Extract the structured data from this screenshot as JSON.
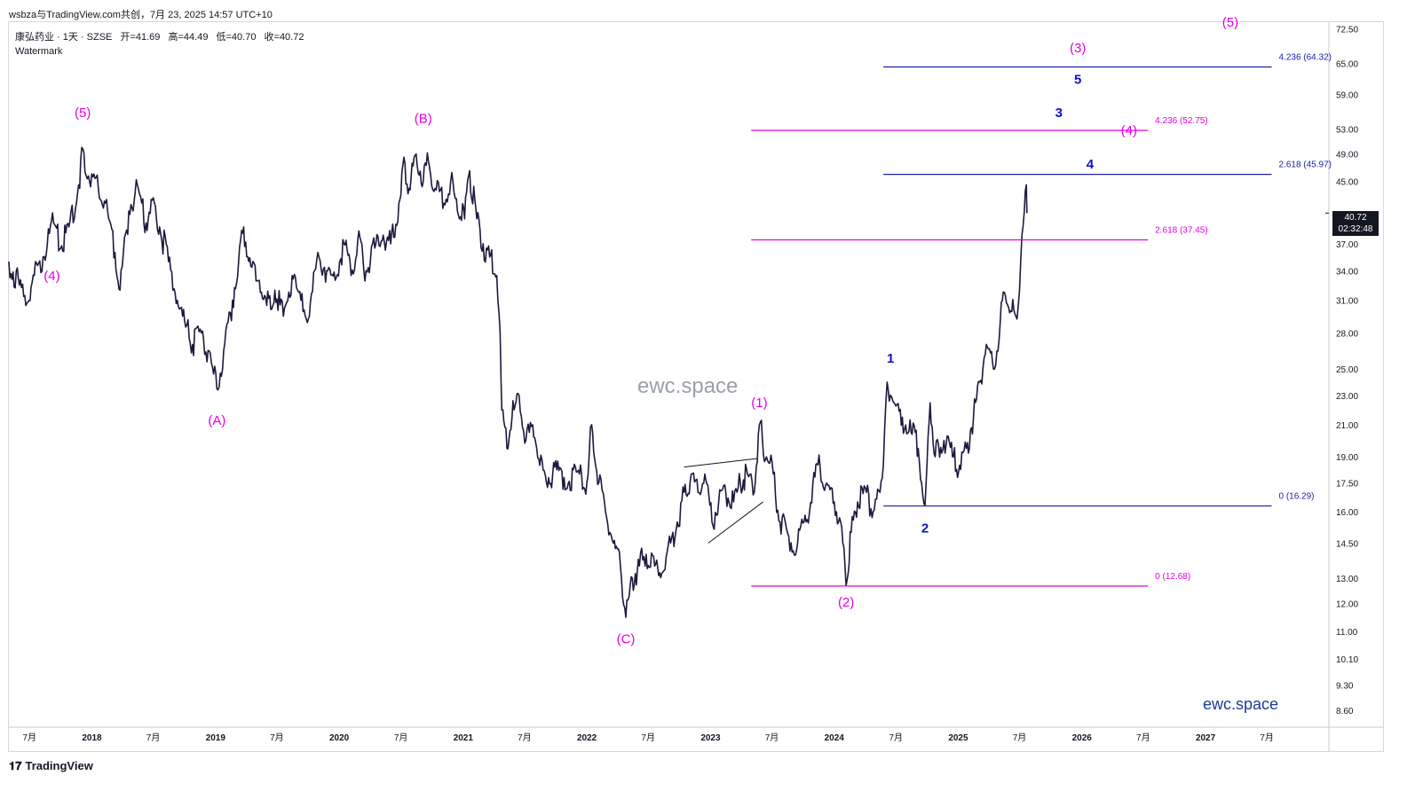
{
  "header": {
    "caption": "wsbza与TradingView.com共创，7月 23, 2025 14:57 UTC+10"
  },
  "legend": {
    "symbol": "康弘药业 · 1天 · SZSE",
    "open": "开=41.69",
    "high": "高=44.49",
    "low": "低=40.70",
    "close": "收=40.72",
    "watermark_label": "Watermark"
  },
  "overlay": {
    "center_watermark": "ewc.space",
    "brand_text": "ewc.space",
    "tradingview_glyph": "𝟏𝟕",
    "tradingview_label": "TradingView"
  },
  "price_tag": {
    "price": "40.72",
    "countdown": "02:32:48"
  },
  "colors": {
    "candles": "#1c1a3c",
    "magenta": "#e400e4",
    "blue": "#1010c8",
    "fib_blue": "#2020a8",
    "axis_text": "#131722"
  },
  "chart_data": {
    "type": "line",
    "scale": "log",
    "ylim": [
      8.2,
      74
    ],
    "xlim": [
      "2017-05-01",
      "2027-12-31"
    ],
    "y_ticks": [
      "72.50",
      "65.00",
      "59.00",
      "53.00",
      "49.00",
      "45.00",
      "40.72",
      "37.00",
      "34.00",
      "31.00",
      "28.00",
      "25.00",
      "23.00",
      "21.00",
      "19.00",
      "17.50",
      "16.00",
      "14.50",
      "13.00",
      "12.00",
      "11.00",
      "10.10",
      "9.30",
      "8.60"
    ],
    "x_ticks": [
      {
        "date": "2017-07-01",
        "label": "7月"
      },
      {
        "date": "2018-01-01",
        "label": "2018"
      },
      {
        "date": "2018-07-01",
        "label": "7月"
      },
      {
        "date": "2019-01-01",
        "label": "2019"
      },
      {
        "date": "2019-07-01",
        "label": "7月"
      },
      {
        "date": "2020-01-01",
        "label": "2020"
      },
      {
        "date": "2020-07-01",
        "label": "7月"
      },
      {
        "date": "2021-01-01",
        "label": "2021"
      },
      {
        "date": "2021-07-01",
        "label": "7月"
      },
      {
        "date": "2022-01-01",
        "label": "2022"
      },
      {
        "date": "2022-07-01",
        "label": "7月"
      },
      {
        "date": "2023-01-01",
        "label": "2023"
      },
      {
        "date": "2023-07-01",
        "label": "7月"
      },
      {
        "date": "2024-01-01",
        "label": "2024"
      },
      {
        "date": "2024-07-01",
        "label": "7月"
      },
      {
        "date": "2025-01-01",
        "label": "2025"
      },
      {
        "date": "2025-07-01",
        "label": "7月"
      },
      {
        "date": "2026-01-01",
        "label": "2026"
      },
      {
        "date": "2026-07-01",
        "label": "7月"
      },
      {
        "date": "2027-01-01",
        "label": "2027"
      },
      {
        "date": "2027-07-01",
        "label": "7月"
      }
    ],
    "price_path": [
      [
        "2017-05-01",
        35.0
      ],
      [
        "2017-06-01",
        32.5
      ],
      [
        "2017-06-20",
        30.5
      ],
      [
        "2017-07-15",
        33.5
      ],
      [
        "2017-08-10",
        35.5
      ],
      [
        "2017-09-10",
        39.5
      ],
      [
        "2017-10-01",
        36.5
      ],
      [
        "2017-10-25",
        39.0
      ],
      [
        "2017-11-20",
        43.5
      ],
      [
        "2017-12-05",
        49.8
      ],
      [
        "2017-12-25",
        45.0
      ],
      [
        "2018-01-20",
        44.0
      ],
      [
        "2018-02-10",
        42.0
      ],
      [
        "2018-03-10",
        36.0
      ],
      [
        "2018-03-25",
        32.0
      ],
      [
        "2018-04-20",
        41.0
      ],
      [
        "2018-05-15",
        44.5
      ],
      [
        "2018-06-10",
        39.5
      ],
      [
        "2018-06-25",
        42.5
      ],
      [
        "2018-07-20",
        39.0
      ],
      [
        "2018-08-15",
        35.0
      ],
      [
        "2018-09-10",
        31.0
      ],
      [
        "2018-10-05",
        28.5
      ],
      [
        "2018-10-25",
        27.0
      ],
      [
        "2018-11-20",
        28.0
      ],
      [
        "2018-12-10",
        26.5
      ],
      [
        "2019-01-05",
        23.5
      ],
      [
        "2019-01-25",
        26.5
      ],
      [
        "2019-02-20",
        31.0
      ],
      [
        "2019-03-10",
        35.0
      ],
      [
        "2019-03-25",
        39.0
      ],
      [
        "2019-04-15",
        34.5
      ],
      [
        "2019-05-10",
        33.0
      ],
      [
        "2019-06-01",
        30.5
      ],
      [
        "2019-06-25",
        32.0
      ],
      [
        "2019-07-20",
        29.5
      ],
      [
        "2019-08-15",
        33.5
      ],
      [
        "2019-09-10",
        31.0
      ],
      [
        "2019-10-05",
        29.5
      ],
      [
        "2019-10-30",
        36.0
      ],
      [
        "2019-11-25",
        34.0
      ],
      [
        "2019-12-20",
        33.0
      ],
      [
        "2020-01-15",
        37.0
      ],
      [
        "2020-02-05",
        33.5
      ],
      [
        "2020-02-25",
        37.5
      ],
      [
        "2020-03-20",
        34.0
      ],
      [
        "2020-04-15",
        36.5
      ],
      [
        "2020-05-10",
        38.0
      ],
      [
        "2020-06-01",
        37.0
      ],
      [
        "2020-06-25",
        42.0
      ],
      [
        "2020-07-10",
        48.5
      ],
      [
        "2020-07-25",
        44.0
      ],
      [
        "2020-08-15",
        49.0
      ],
      [
        "2020-09-05",
        45.0
      ],
      [
        "2020-09-20",
        48.0
      ],
      [
        "2020-10-10",
        44.0
      ],
      [
        "2020-11-05",
        42.0
      ],
      [
        "2020-11-25",
        45.0
      ],
      [
        "2020-12-15",
        41.0
      ],
      [
        "2021-01-05",
        40.0
      ],
      [
        "2021-01-20",
        46.5
      ],
      [
        "2021-02-10",
        40.0
      ],
      [
        "2021-03-01",
        37.0
      ],
      [
        "2021-03-20",
        35.5
      ],
      [
        "2021-04-10",
        33.5
      ],
      [
        "2021-04-20",
        28.0
      ],
      [
        "2021-04-25",
        22.0
      ],
      [
        "2021-05-10",
        19.5
      ],
      [
        "2021-05-25",
        21.5
      ],
      [
        "2021-06-15",
        23.0
      ],
      [
        "2021-07-05",
        20.0
      ],
      [
        "2021-07-25",
        21.0
      ],
      [
        "2021-08-15",
        18.5
      ],
      [
        "2021-09-10",
        17.8
      ],
      [
        "2021-10-10",
        18.2
      ],
      [
        "2021-11-10",
        17.6
      ],
      [
        "2021-12-10",
        18.0
      ],
      [
        "2022-01-01",
        17.5
      ],
      [
        "2022-01-15",
        21.0
      ],
      [
        "2022-02-05",
        17.5
      ],
      [
        "2022-02-25",
        16.0
      ],
      [
        "2022-03-20",
        14.5
      ],
      [
        "2022-04-10",
        13.5
      ],
      [
        "2022-04-26",
        11.5
      ],
      [
        "2022-05-15",
        13.0
      ],
      [
        "2022-06-05",
        13.5
      ],
      [
        "2022-06-25",
        14.0
      ],
      [
        "2022-07-20",
        13.5
      ],
      [
        "2022-08-10",
        13.2
      ],
      [
        "2022-09-05",
        14.5
      ],
      [
        "2022-09-25",
        15.5
      ],
      [
        "2022-10-15",
        17.0
      ],
      [
        "2022-11-05",
        18.0
      ],
      [
        "2022-11-25",
        17.0
      ],
      [
        "2022-12-15",
        18.0
      ],
      [
        "2023-01-05",
        15.5
      ],
      [
        "2023-01-25",
        16.5
      ],
      [
        "2023-02-15",
        17.0
      ],
      [
        "2023-03-10",
        16.5
      ],
      [
        "2023-03-30",
        17.5
      ],
      [
        "2023-04-20",
        18.0
      ],
      [
        "2023-05-10",
        17.0
      ],
      [
        "2023-05-25",
        21.0
      ],
      [
        "2023-06-15",
        19.0
      ],
      [
        "2023-07-05",
        18.0
      ],
      [
        "2023-07-25",
        15.5
      ],
      [
        "2023-08-20",
        14.8
      ],
      [
        "2023-09-15",
        14.5
      ],
      [
        "2023-10-10",
        15.5
      ],
      [
        "2023-10-30",
        17.5
      ],
      [
        "2023-11-20",
        18.5
      ],
      [
        "2023-12-10",
        17.5
      ],
      [
        "2024-01-01",
        16.5
      ],
      [
        "2024-01-20",
        15.5
      ],
      [
        "2024-02-05",
        12.7
      ],
      [
        "2024-02-20",
        15.0
      ],
      [
        "2024-03-10",
        16.5
      ],
      [
        "2024-04-05",
        17.0
      ],
      [
        "2024-04-25",
        16.0
      ],
      [
        "2024-05-15",
        17.0
      ],
      [
        "2024-05-25",
        18.5
      ],
      [
        "2024-06-05",
        24.0
      ],
      [
        "2024-06-25",
        22.5
      ],
      [
        "2024-07-20",
        21.5
      ],
      [
        "2024-08-15",
        20.5
      ],
      [
        "2024-09-05",
        19.5
      ],
      [
        "2024-09-25",
        16.3
      ],
      [
        "2024-10-10",
        22.5
      ],
      [
        "2024-10-25",
        19.0
      ],
      [
        "2024-11-20",
        20.0
      ],
      [
        "2024-12-15",
        19.0
      ],
      [
        "2025-01-05",
        18.5
      ],
      [
        "2025-01-25",
        19.5
      ],
      [
        "2025-02-15",
        21.5
      ],
      [
        "2025-03-05",
        24.0
      ],
      [
        "2025-03-25",
        27.0
      ],
      [
        "2025-04-15",
        25.0
      ],
      [
        "2025-05-05",
        29.0
      ],
      [
        "2025-05-20",
        31.5
      ],
      [
        "2025-06-05",
        30.0
      ],
      [
        "2025-06-20",
        29.5
      ],
      [
        "2025-07-01",
        32.0
      ],
      [
        "2025-07-08",
        38.0
      ],
      [
        "2025-07-15",
        41.0
      ],
      [
        "2025-07-21",
        44.49
      ],
      [
        "2025-07-23",
        40.72
      ]
    ],
    "fib_levels": [
      {
        "label": "0 (12.68)",
        "value": 12.68,
        "color": "magenta",
        "x1": "2023-05-01",
        "x2": "2026-07-15"
      },
      {
        "label": "2.618 (37.45)",
        "value": 37.45,
        "color": "magenta",
        "x1": "2023-05-01",
        "x2": "2026-07-15"
      },
      {
        "label": "4.236 (52.75)",
        "value": 52.75,
        "color": "magenta",
        "x1": "2023-05-01",
        "x2": "2026-07-15"
      },
      {
        "label": "0 (16.29)",
        "value": 16.29,
        "color": "fib_blue",
        "x1": "2024-05-25",
        "x2": "2027-07-15"
      },
      {
        "label": "2.618 (45.97)",
        "value": 45.97,
        "color": "fib_blue",
        "x1": "2024-05-25",
        "x2": "2027-07-15"
      },
      {
        "label": "4.236 (64.32)",
        "value": 64.32,
        "color": "fib_blue",
        "x1": "2024-05-25",
        "x2": "2027-07-15"
      }
    ],
    "wave_labels": [
      {
        "text": "(5)",
        "date": "2017-12-05",
        "price": 55.0,
        "color": "magenta"
      },
      {
        "text": "(4)",
        "date": "2017-09-05",
        "price": 33.0,
        "color": "magenta"
      },
      {
        "text": "(A)",
        "date": "2019-01-05",
        "price": 21.0,
        "color": "magenta"
      },
      {
        "text": "(B)",
        "date": "2020-09-05",
        "price": 54.0,
        "color": "magenta"
      },
      {
        "text": "(C)",
        "date": "2022-04-26",
        "price": 10.6,
        "color": "magenta"
      },
      {
        "text": "(1)",
        "date": "2023-05-25",
        "price": 22.2,
        "color": "magenta"
      },
      {
        "text": "(2)",
        "date": "2024-02-05",
        "price": 11.9,
        "color": "magenta"
      },
      {
        "text": "(3)",
        "date": "2025-12-20",
        "price": 67.3,
        "color": "magenta"
      },
      {
        "text": "(4)",
        "date": "2026-05-20",
        "price": 52.0,
        "color": "magenta"
      },
      {
        "text": "(5)",
        "date": "2027-03-15",
        "price": 73.0,
        "color": "magenta"
      },
      {
        "text": "1",
        "date": "2024-06-15",
        "price": 25.5,
        "color": "blue"
      },
      {
        "text": "2",
        "date": "2024-09-25",
        "price": 15.0,
        "color": "blue"
      },
      {
        "text": "3",
        "date": "2025-10-25",
        "price": 55.0,
        "color": "blue"
      },
      {
        "text": "4",
        "date": "2026-01-25",
        "price": 46.8,
        "color": "blue"
      },
      {
        "text": "5",
        "date": "2025-12-20",
        "price": 61.0,
        "color": "blue"
      }
    ],
    "triangle_lines": [
      [
        [
          "2022-10-15",
          18.4
        ],
        [
          "2023-05-20",
          18.9
        ]
      ],
      [
        [
          "2022-12-25",
          14.5
        ],
        [
          "2023-06-05",
          16.5
        ]
      ]
    ]
  }
}
